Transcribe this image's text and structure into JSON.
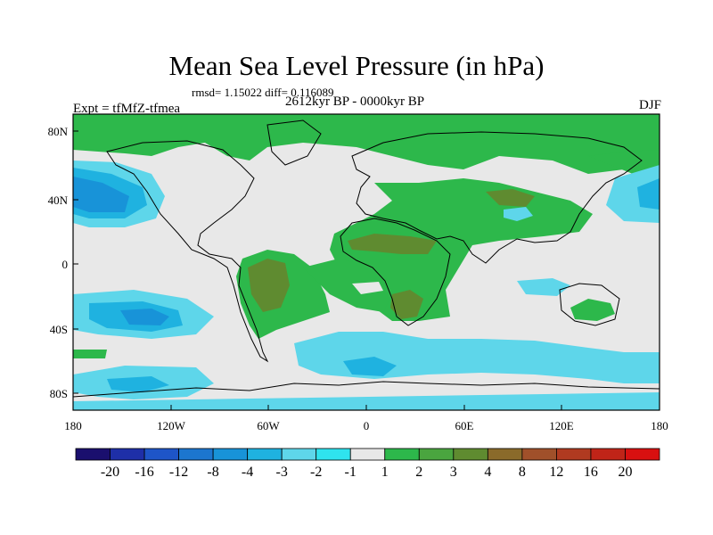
{
  "title": "Mean Sea Level Pressure (in hPa)",
  "stats": "rmsd= 1.15022 diff= 0.116089",
  "period": "2612kyr BP - 0000kyr BP",
  "experiment": "Expt = tfMfZ-tfmea",
  "season": "DJF",
  "axes": {
    "y_ticks": [
      "80N",
      "40N",
      "0",
      "40S",
      "80S"
    ],
    "x_ticks": [
      "180",
      "120W",
      "60W",
      "0",
      "60E",
      "120E",
      "180"
    ]
  },
  "colorbar": {
    "labels": [
      "-20",
      "-16",
      "-12",
      "-8",
      "-4",
      "-3",
      "-2",
      "-1",
      "1",
      "2",
      "3",
      "4",
      "8",
      "12",
      "16",
      "20"
    ],
    "colors": [
      "#1a0f6e",
      "#1e2fa8",
      "#1e55c8",
      "#1c76cf",
      "#1893d8",
      "#1fb2e0",
      "#5ed6ea",
      "#2fe3ee",
      "#e8e8e8",
      "#2db84b",
      "#4aa53f",
      "#5f8b30",
      "#8a6a2a",
      "#a0502a",
      "#b03a20",
      "#c02418",
      "#d81010"
    ]
  },
  "colors": {
    "land_outline": "#000000",
    "neutral": "#e8e8e8",
    "pos_weak": "#2db84b",
    "pos_mid": "#5f8b30",
    "neg_weak": "#5ed6ea",
    "neg_mid": "#1fb2e0",
    "neg_strong": "#1893d8"
  }
}
